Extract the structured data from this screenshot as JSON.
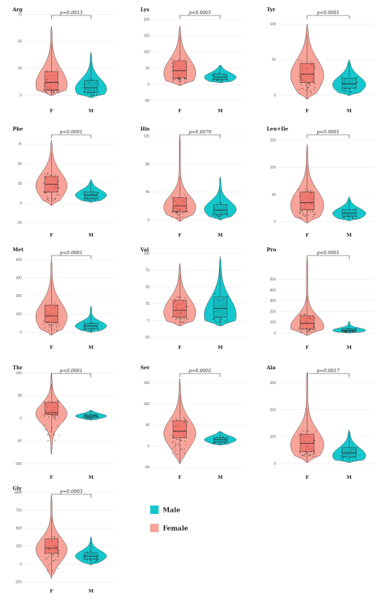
{
  "colors": {
    "female": "#F8A49A",
    "male": "#14C8CD",
    "female_box": "#E8564E",
    "male_box": "#10A9AE"
  },
  "legend": {
    "male_label": "Male",
    "female_label": "Female"
  },
  "chart_data": [
    {
      "type": "violin",
      "title": "Arg",
      "categories": [
        "F",
        "M"
      ],
      "pvalue": "p=0.0013",
      "yticks": [
        0,
        25,
        50,
        75
      ],
      "ylim": [
        -8,
        78
      ],
      "series": [
        {
          "name": "F",
          "min": 0,
          "q1": 5,
          "median": 12,
          "q3": 22,
          "max": 64,
          "mode": 10
        },
        {
          "name": "M",
          "min": -2,
          "q1": 3,
          "median": 7,
          "q3": 14,
          "max": 40,
          "mode": 6
        }
      ]
    },
    {
      "type": "violin",
      "title": "Lys",
      "categories": [
        "F",
        "M"
      ],
      "pvalue": "p<0.0001",
      "yticks": [
        -50,
        0,
        50,
        100,
        150,
        200
      ],
      "ylim": [
        -60,
        225
      ],
      "series": [
        {
          "name": "F",
          "min": -3,
          "q1": 20,
          "median": 42,
          "q3": 72,
          "max": 180,
          "mode": 35
        },
        {
          "name": "M",
          "min": 5,
          "q1": 15,
          "median": 22,
          "q3": 32,
          "max": 60,
          "mode": 22
        }
      ]
    },
    {
      "type": "violin",
      "title": "Tyr",
      "categories": [
        "F",
        "M"
      ],
      "pvalue": "p<0.0001",
      "yticks": [
        0,
        50,
        100
      ],
      "ylim": [
        -12,
        118
      ],
      "series": [
        {
          "name": "F",
          "min": -5,
          "q1": 18,
          "median": 30,
          "q3": 45,
          "max": 100,
          "mode": 28
        },
        {
          "name": "M",
          "min": 0,
          "q1": 10,
          "median": 16,
          "q3": 24,
          "max": 50,
          "mode": 15
        }
      ]
    },
    {
      "type": "violin",
      "title": "Phe",
      "categories": [
        "F",
        "M"
      ],
      "pvalue": "p<0.0001",
      "yticks": [
        -25,
        0,
        25,
        50,
        75
      ],
      "ylim": [
        -32,
        92
      ],
      "series": [
        {
          "name": "F",
          "min": -3,
          "q1": 14,
          "median": 24,
          "q3": 34,
          "max": 80,
          "mode": 22
        },
        {
          "name": "M",
          "min": 1,
          "q1": 6,
          "median": 10,
          "q3": 14,
          "max": 30,
          "mode": 10
        }
      ]
    },
    {
      "type": "violin",
      "title": "His",
      "categories": [
        "F",
        "M"
      ],
      "pvalue": "p=0.0079",
      "yticks": [
        0,
        40,
        80,
        120
      ],
      "ylim": [
        -12,
        128
      ],
      "series": [
        {
          "name": "F",
          "min": -2,
          "q1": 12,
          "median": 20,
          "q3": 32,
          "max": 120,
          "mode": 18
        },
        {
          "name": "M",
          "min": 0,
          "q1": 8,
          "median": 14,
          "q3": 22,
          "max": 62,
          "mode": 15
        }
      ]
    },
    {
      "type": "violin",
      "title": "Leu+Ile",
      "categories": [
        "F",
        "M"
      ],
      "pvalue": "p<0.0001",
      "yticks": [
        0,
        50,
        100,
        150
      ],
      "ylim": [
        -12,
        168
      ],
      "series": [
        {
          "name": "F",
          "min": -2,
          "q1": 22,
          "median": 35,
          "q3": 55,
          "max": 142,
          "mode": 30
        },
        {
          "name": "M",
          "min": 2,
          "q1": 10,
          "median": 16,
          "q3": 22,
          "max": 46,
          "mode": 15
        }
      ]
    },
    {
      "type": "violin",
      "title": "Met",
      "categories": [
        "F",
        "M"
      ],
      "pvalue": "p<0.0001",
      "yticks": [
        0,
        100,
        200,
        300,
        400
      ],
      "ylim": [
        -45,
        445
      ],
      "series": [
        {
          "name": "F",
          "min": -15,
          "q1": 55,
          "median": 90,
          "q3": 150,
          "max": 400,
          "mode": 85
        },
        {
          "name": "M",
          "min": 0,
          "q1": 20,
          "median": 35,
          "q3": 50,
          "max": 145,
          "mode": 35
        }
      ]
    },
    {
      "type": "violin",
      "title": "Val",
      "categories": [
        "F",
        "M"
      ],
      "pvalue": "",
      "yticks": [
        -25,
        0,
        25,
        50,
        75,
        100
      ],
      "ylim": [
        -30,
        103
      ],
      "series": [
        {
          "name": "F",
          "min": -8,
          "q1": 5,
          "median": 15,
          "q3": 30,
          "max": 85,
          "mode": 12
        },
        {
          "name": "M",
          "min": -8,
          "q1": 5,
          "median": 18,
          "q3": 35,
          "max": 95,
          "mode": 8
        }
      ]
    },
    {
      "type": "violin",
      "title": "Pro",
      "categories": [
        "F",
        "M"
      ],
      "pvalue": "p<0.0001",
      "yticks": [
        0,
        100,
        200,
        300,
        400,
        500
      ],
      "ylim": [
        -70,
        760
      ],
      "series": [
        {
          "name": "F",
          "min": -20,
          "q1": 40,
          "median": 90,
          "q3": 160,
          "max": 700,
          "mode": 60
        },
        {
          "name": "M",
          "min": 0,
          "q1": 15,
          "median": 25,
          "q3": 40,
          "max": 110,
          "mode": 25
        }
      ]
    },
    {
      "type": "violin",
      "title": "Thr",
      "categories": [
        "F",
        "M"
      ],
      "pvalue": "p<0.0001",
      "yticks": [
        -100,
        -50,
        0,
        50,
        100
      ],
      "ylim": [
        -115,
        108
      ],
      "series": [
        {
          "name": "F",
          "min": -80,
          "q1": 8,
          "median": 12,
          "q3": 35,
          "max": 100,
          "mode": 10
        },
        {
          "name": "M",
          "min": -4,
          "q1": 2,
          "median": 5,
          "q3": 8,
          "max": 18,
          "mode": 5
        }
      ]
    },
    {
      "type": "violin",
      "title": "Ser",
      "categories": [
        "F",
        "M"
      ],
      "pvalue": "p=0.0002",
      "yticks": [
        -50,
        0,
        50,
        100,
        150
      ],
      "ylim": [
        -58,
        182
      ],
      "series": [
        {
          "name": "F",
          "min": -42,
          "q1": 20,
          "median": 35,
          "q3": 60,
          "max": 160,
          "mode": 30
        },
        {
          "name": "M",
          "min": 2,
          "q1": 10,
          "median": 15,
          "q3": 20,
          "max": 35,
          "mode": 15
        }
      ]
    },
    {
      "type": "violin",
      "title": "Ala",
      "categories": [
        "F",
        "M"
      ],
      "pvalue": "p=0.0017",
      "yticks": [
        0,
        100,
        200,
        300
      ],
      "ylim": [
        -25,
        350
      ],
      "series": [
        {
          "name": "F",
          "min": 5,
          "q1": 45,
          "median": 75,
          "q3": 110,
          "max": 340,
          "mode": 70
        },
        {
          "name": "M",
          "min": 5,
          "q1": 25,
          "median": 40,
          "q3": 60,
          "max": 125,
          "mode": 30
        }
      ]
    },
    {
      "type": "violin",
      "title": "Gly",
      "categories": [
        "F",
        "M"
      ],
      "pvalue": "p=0.0003",
      "yticks": [
        -250,
        0,
        250,
        500,
        750,
        1000
      ],
      "ylim": [
        -280,
        1030
      ],
      "series": [
        {
          "name": "F",
          "min": -200,
          "q1": 150,
          "median": 220,
          "q3": 350,
          "max": 950,
          "mode": 200
        },
        {
          "name": "M",
          "min": -10,
          "q1": 70,
          "median": 110,
          "q3": 160,
          "max": 380,
          "mode": 110
        }
      ]
    }
  ]
}
